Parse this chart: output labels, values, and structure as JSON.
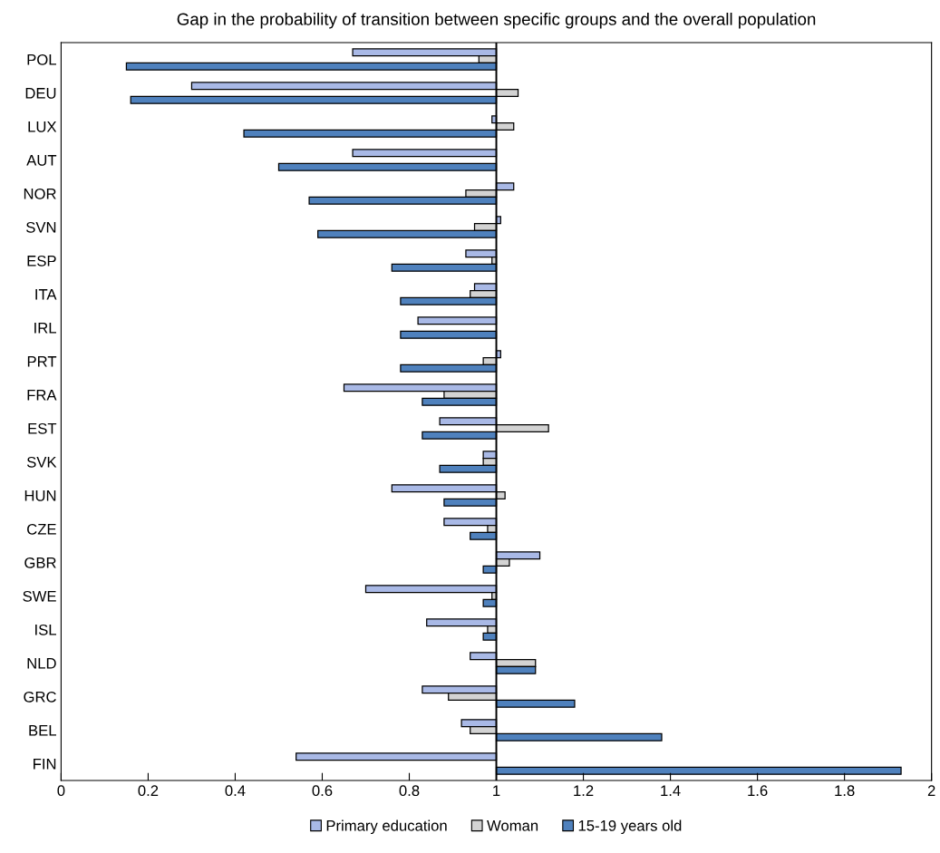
{
  "chart_data": {
    "type": "bar",
    "orientation": "horizontal",
    "title": "Gap in the probability of transition between specific groups and the overall population",
    "categories": [
      "POL",
      "DEU",
      "LUX",
      "AUT",
      "NOR",
      "SVN",
      "ESP",
      "ITA",
      "IRL",
      "PRT",
      "FRA",
      "EST",
      "SVK",
      "HUN",
      "CZE",
      "GBR",
      "SWE",
      "ISL",
      "NLD",
      "GRC",
      "BEL",
      "FIN"
    ],
    "series": [
      {
        "name": "Primary education",
        "color": "#a9b9e6",
        "base": [
          1,
          1,
          1,
          1,
          1,
          1,
          1,
          1,
          1,
          1,
          1,
          1,
          1,
          1,
          1,
          1,
          1,
          1,
          1,
          1,
          1,
          1
        ],
        "values": [
          -0.33,
          -0.7,
          -0.01,
          -0.33,
          0.04,
          0.01,
          -0.07,
          -0.05,
          -0.18,
          0.01,
          -0.35,
          -0.13,
          -0.03,
          -0.24,
          -0.12,
          0.1,
          -0.3,
          -0.16,
          -0.06,
          -0.17,
          -0.08,
          -0.46
        ]
      },
      {
        "name": "Woman",
        "color": "#d3d3d3",
        "base": [
          1,
          1,
          1,
          null,
          1,
          1,
          1,
          1,
          null,
          1,
          1,
          1,
          1,
          1,
          1,
          1,
          1,
          1,
          1,
          1,
          1,
          null
        ],
        "values": [
          -0.04,
          0.05,
          0.04,
          null,
          -0.07,
          -0.05,
          -0.01,
          -0.06,
          null,
          -0.03,
          -0.12,
          0.12,
          -0.03,
          0.02,
          -0.02,
          0.03,
          -0.01,
          -0.02,
          0.09,
          -0.11,
          -0.06,
          null
        ]
      },
      {
        "name": "15-19 years old",
        "color": "#4f81bd",
        "base": [
          1,
          1,
          1,
          1,
          1,
          1,
          1,
          1,
          1,
          1,
          1,
          1,
          1,
          1,
          1,
          1,
          1,
          1,
          1,
          1,
          1,
          1
        ],
        "values": [
          -0.85,
          -0.84,
          -0.58,
          -0.5,
          -0.43,
          -0.41,
          -0.24,
          -0.22,
          -0.22,
          -0.22,
          -0.17,
          -0.17,
          -0.13,
          -0.12,
          -0.06,
          -0.03,
          -0.03,
          -0.03,
          0.09,
          0.18,
          0.38,
          0.93
        ]
      }
    ],
    "xlim": [
      0,
      2
    ],
    "xticks": [
      0,
      0.2,
      0.4,
      0.6,
      0.8,
      1,
      1.2,
      1.4,
      1.6,
      1.8,
      2
    ],
    "ref_lines": [
      {
        "axis": "x",
        "value": 1,
        "color": "#000000"
      }
    ],
    "legend": "bottom"
  }
}
